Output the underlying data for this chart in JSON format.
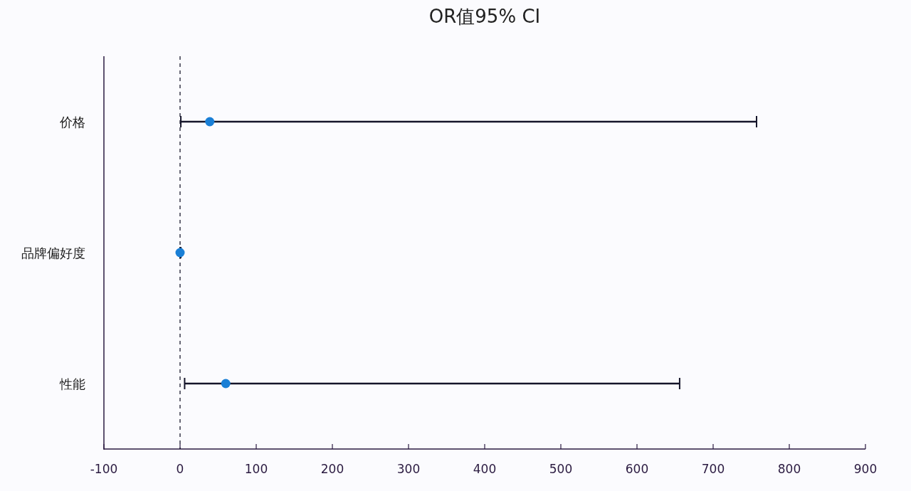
{
  "chart_data": {
    "type": "scatter",
    "title": "OR值95% CI",
    "orientation": "horizontal",
    "categories": [
      "价格",
      "品牌偏好度",
      "性能"
    ],
    "color": "#1a7fd6",
    "values": [
      39,
      0,
      60
    ],
    "errors": [
      [
        1,
        757
      ],
      [
        0,
        1
      ],
      [
        6,
        656
      ]
    ],
    "xlim": [
      -100,
      900
    ],
    "xticks": [
      -100,
      0,
      100,
      200,
      300,
      400,
      500,
      600,
      700,
      800,
      900
    ],
    "ref_lines": [
      {
        "axis": "x",
        "value": 0,
        "line_style": "dashed",
        "color": "#1a1a2e"
      }
    ],
    "marker": "circle",
    "grid": false
  }
}
